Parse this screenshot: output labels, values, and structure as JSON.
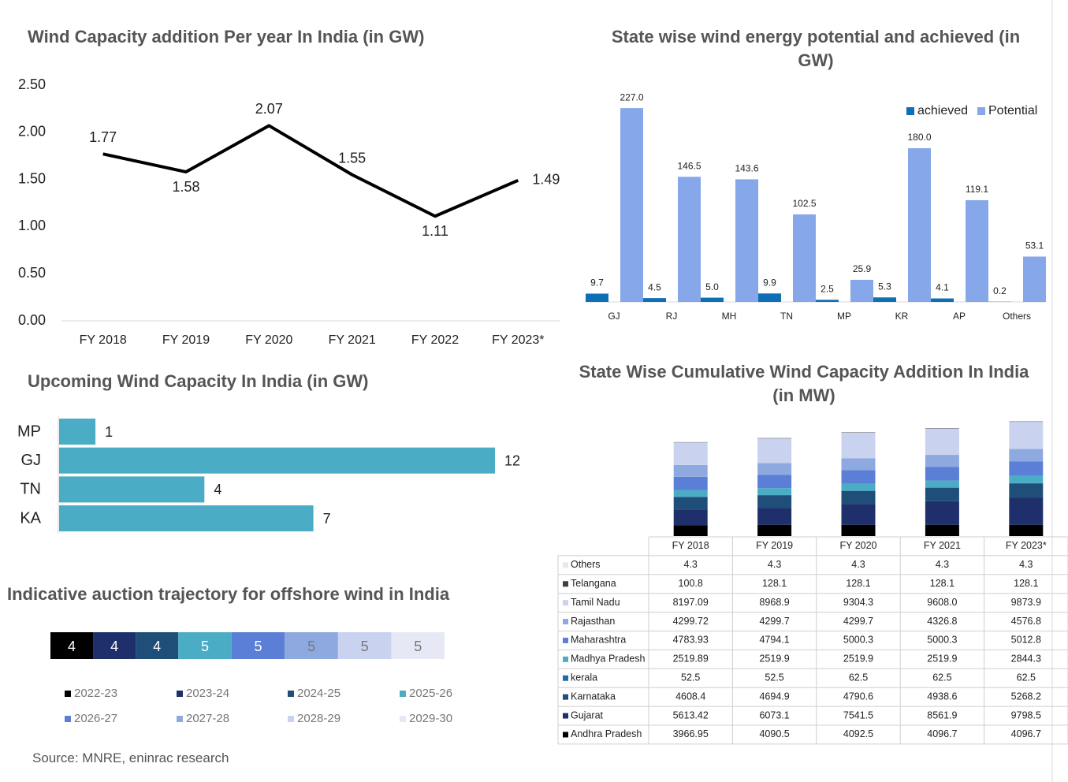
{
  "chart_data": [
    {
      "type": "line",
      "title": "Wind Capacity addition Per year In India (in GW)",
      "categories": [
        "FY 2018",
        "FY 2019",
        "FY 2020",
        "FY 2021",
        "FY 2022",
        "FY 2023*"
      ],
      "values": [
        1.77,
        1.58,
        2.07,
        1.55,
        1.11,
        1.49
      ],
      "color": "#000000",
      "ylim": [
        0,
        2.5
      ],
      "yticks": [
        {
          "value": 0,
          "label": "0.00"
        },
        {
          "value": 0.5,
          "label": "0.50"
        },
        {
          "value": 1,
          "label": "1.00"
        },
        {
          "value": 1.5,
          "label": "1.50"
        },
        {
          "value": 2,
          "label": "2.00"
        },
        {
          "value": 2.5,
          "label": "2.50"
        }
      ],
      "grid": false
    },
    {
      "type": "bar",
      "title": "State wise wind energy potential and achieved (in GW)",
      "categories": [
        "GJ",
        "RJ",
        "MH",
        "TN",
        "MP",
        "KR",
        "AP",
        "Others"
      ],
      "ylim": [
        0,
        240
      ],
      "legend": "top-right",
      "series": [
        {
          "name": "achieved",
          "color": "#0f6fb5",
          "values": [
            9.7,
            4.5,
            5.0,
            9.9,
            2.5,
            5.3,
            4.1,
            0.2
          ],
          "value_labels": [
            "9.7",
            "4.5",
            "5.0",
            "9.9",
            "2.5",
            "5.3",
            "4.1",
            "0.2"
          ]
        },
        {
          "name": "Potential",
          "color": "#86a8ea",
          "values": [
            227.0,
            146.5,
            143.6,
            102.5,
            25.9,
            180.0,
            119.1,
            53.1
          ],
          "value_labels": [
            "227.0",
            "146.5",
            "143.6",
            "102.5",
            "25.9",
            "180.0",
            "119.1",
            "53.1"
          ]
        }
      ]
    },
    {
      "type": "hbar",
      "title": "Upcoming Wind Capacity In India (in GW)",
      "categories": [
        "MP",
        "GJ",
        "TN",
        "KA"
      ],
      "values": [
        1,
        12,
        4,
        7
      ],
      "color": "#4bacc6",
      "xlim": [
        0,
        12
      ]
    },
    {
      "type": "stacked-hbar",
      "title": "Indicative auction trajectory for offshore wind in India",
      "series": [
        {
          "name": "2022-23",
          "color": "#000000",
          "values": [
            4
          ]
        },
        {
          "name": "2023-24",
          "color": "#1f2f6b",
          "values": [
            4
          ]
        },
        {
          "name": "2024-25",
          "color": "#1f4e79",
          "values": [
            4
          ]
        },
        {
          "name": "2025-26",
          "color": "#4bacc6",
          "values": [
            5
          ]
        },
        {
          "name": "2026-27",
          "color": "#5b7fd6",
          "values": [
            5
          ]
        },
        {
          "name": "2027-28",
          "color": "#8ea9e0",
          "values": [
            5
          ]
        },
        {
          "name": "2028-29",
          "color": "#c9d3f0",
          "values": [
            5
          ]
        },
        {
          "name": "2029-30",
          "color": "#e6e9f5",
          "values": [
            5
          ]
        }
      ]
    },
    {
      "type": "stacked-bar-table",
      "title": "State Wise Cumulative Wind Capacity Addition In India (in MW)",
      "categories": [
        "FY 2018",
        "FY 2019",
        "FY 2020",
        "FY 2021",
        "FY 2023*"
      ],
      "ylim": [
        0,
        45000
      ],
      "series": [
        {
          "name": "Andhra Pradesh",
          "color": "#000000",
          "values": [
            3966.95,
            4090.5,
            4092.5,
            4096.7,
            4096.7
          ]
        },
        {
          "name": "Gujarat",
          "color": "#1f2f6b",
          "values": [
            5613.42,
            6073.1,
            7541.5,
            8561.9,
            9798.5
          ]
        },
        {
          "name": "Karnataka",
          "color": "#1f4e79",
          "values": [
            4608.4,
            4694.9,
            4790.6,
            4938.6,
            5268.2
          ]
        },
        {
          "name": "kerala",
          "color": "#1a6fa8",
          "values": [
            52.5,
            52.5,
            62.5,
            62.5,
            62.5
          ]
        },
        {
          "name": "Madhya Pradesh",
          "color": "#4bacc6",
          "values": [
            2519.89,
            2519.9,
            2519.9,
            2519.9,
            2844.3
          ]
        },
        {
          "name": "Maharashtra",
          "color": "#5b7fd6",
          "values": [
            4783.93,
            4794.1,
            5000.3,
            5000.3,
            5012.8
          ]
        },
        {
          "name": "Rajasthan",
          "color": "#8ea9e0",
          "values": [
            4299.72,
            4299.7,
            4299.7,
            4326.8,
            4576.8
          ]
        },
        {
          "name": "Tamil Nadu",
          "color": "#c9d3f0",
          "values": [
            8197.09,
            8968.9,
            9304.3,
            9608.0,
            9873.9
          ],
          "value_labels": [
            "8197.09",
            "8968.9",
            "9304.3",
            "9608.0",
            "9873.9"
          ]
        },
        {
          "name": "Telangana",
          "color": "#404040",
          "values": [
            100.8,
            128.1,
            128.1,
            128.1,
            128.1
          ]
        },
        {
          "name": "Others",
          "color": "#e8e8e8",
          "values": [
            4.3,
            4.3,
            4.3,
            4.3,
            4.3
          ]
        }
      ]
    }
  ],
  "source": "Source: MNRE, eninrac research"
}
